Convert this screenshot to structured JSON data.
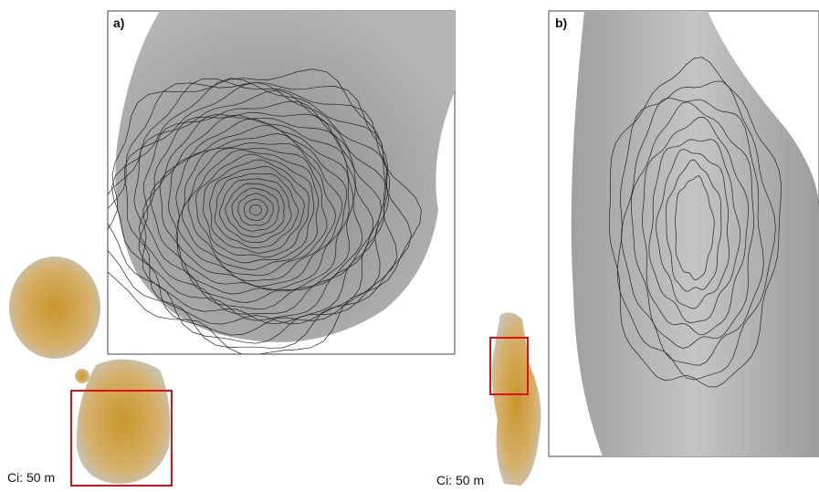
{
  "panels": [
    {
      "label": "a)",
      "contour_interval": "Ci: 50 m"
    },
    {
      "label": "b)",
      "contour_interval": "Ci: 50 m"
    }
  ]
}
